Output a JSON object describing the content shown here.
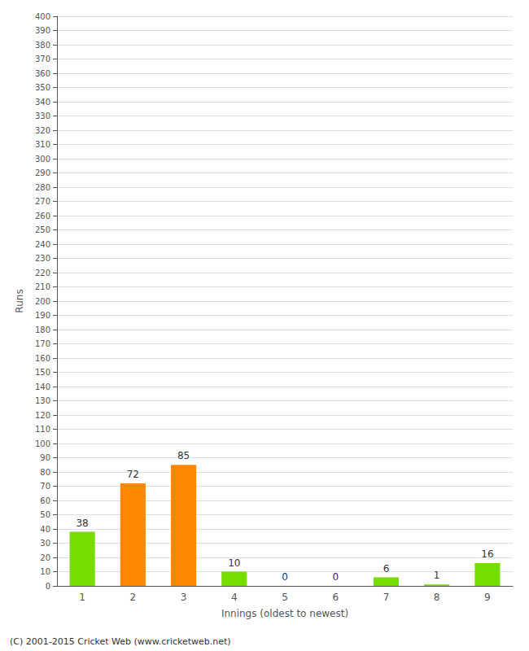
{
  "chart_data": {
    "type": "bar",
    "categories": [
      "1",
      "2",
      "3",
      "4",
      "5",
      "6",
      "7",
      "8",
      "9"
    ],
    "values": [
      38,
      72,
      85,
      10,
      0,
      0,
      6,
      1,
      16
    ],
    "colors": [
      "#77dd00",
      "#ff8800",
      "#ff8800",
      "#77dd00",
      "#77dd00",
      "#77dd00",
      "#77dd00",
      "#77dd00",
      "#77dd00"
    ],
    "xlabel": "Innings (oldest to newest)",
    "ylabel": "Runs",
    "ylim": [
      0,
      400
    ],
    "yticks": [
      0,
      10,
      20,
      30,
      40,
      50,
      60,
      70,
      80,
      90,
      100,
      110,
      120,
      130,
      140,
      150,
      160,
      170,
      180,
      190,
      200,
      210,
      220,
      230,
      240,
      250,
      260,
      270,
      280,
      290,
      300,
      310,
      320,
      330,
      340,
      350,
      360,
      370,
      380,
      390,
      400
    ],
    "grid": true,
    "data_labels": true,
    "annotations": [
      "(C) 2001-2015 Cricket Web (www.cricketweb.net)"
    ]
  }
}
